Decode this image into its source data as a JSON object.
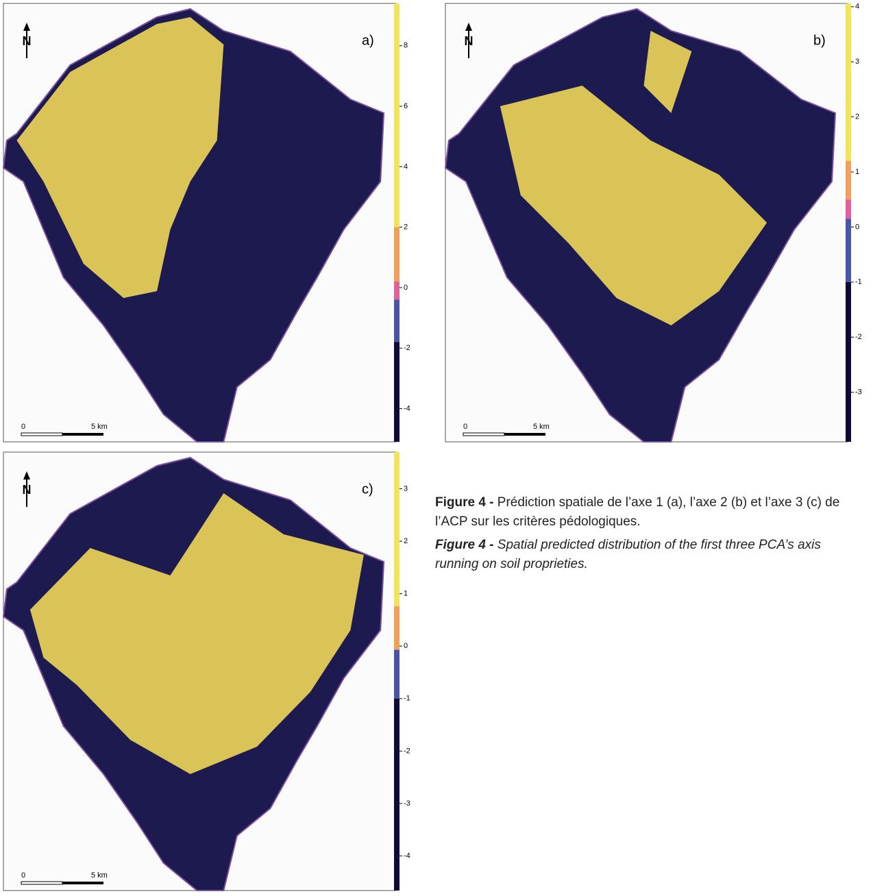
{
  "panels": [
    {
      "label": "a)",
      "north": "N",
      "scale_start": "0",
      "scale_end": "5 km",
      "colorbar": {
        "lim": [
          -5.1,
          9.4
        ],
        "ticks": [
          8,
          6,
          4,
          2,
          0,
          -2,
          -4
        ],
        "segments": [
          {
            "from": 2,
            "to": 9.4,
            "color": "#f2e35a"
          },
          {
            "from": 0.2,
            "to": 2,
            "color": "#f0a05a"
          },
          {
            "from": -0.4,
            "to": 0.2,
            "color": "#e0609a"
          },
          {
            "from": -1.8,
            "to": -0.4,
            "color": "#4a55a8"
          },
          {
            "from": -5.1,
            "to": -1.8,
            "color": "#0e0c36"
          }
        ]
      }
    },
    {
      "label": "b)",
      "north": "N",
      "scale_start": "0",
      "scale_end": "5 km",
      "colorbar": {
        "lim": [
          -3.9,
          4.06
        ],
        "ticks": [
          4,
          3,
          2,
          1,
          0,
          -1,
          -2,
          -3
        ],
        "segments": [
          {
            "from": 1.2,
            "to": 4.06,
            "color": "#f2e35a"
          },
          {
            "from": 0.5,
            "to": 1.2,
            "color": "#f0a05a"
          },
          {
            "from": 0.15,
            "to": 0.5,
            "color": "#e0609a"
          },
          {
            "from": -1,
            "to": 0.15,
            "color": "#4a55a8"
          },
          {
            "from": -3.9,
            "to": -1,
            "color": "#0e0c36"
          }
        ]
      }
    },
    {
      "label": "c)",
      "north": "N",
      "scale_start": "0",
      "scale_end": "5 km",
      "colorbar": {
        "lim": [
          -4.66,
          3.7
        ],
        "ticks": [
          3,
          2,
          1,
          0,
          -1,
          -2,
          -3,
          -4
        ],
        "segments": [
          {
            "from": 0.76,
            "to": 3.7,
            "color": "#f2e35a"
          },
          {
            "from": -0.07,
            "to": 0.76,
            "color": "#f0a05a"
          },
          {
            "from": -1,
            "to": -0.07,
            "color": "#4a55a8"
          },
          {
            "from": -4.66,
            "to": -1,
            "color": "#0e0c36"
          }
        ]
      }
    }
  ],
  "caption": {
    "fr_label": "Figure 4 -",
    "fr_text": "Prédiction spatiale de l’axe 1 (a), l’axe 2 (b) et l’axe 3 (c) de l’ACP sur les critères pédologiques.",
    "en_label": "Figure 4 -",
    "en_text": "Spatial predicted distribution of the first three PCA’s axis running on soil proprieties."
  }
}
